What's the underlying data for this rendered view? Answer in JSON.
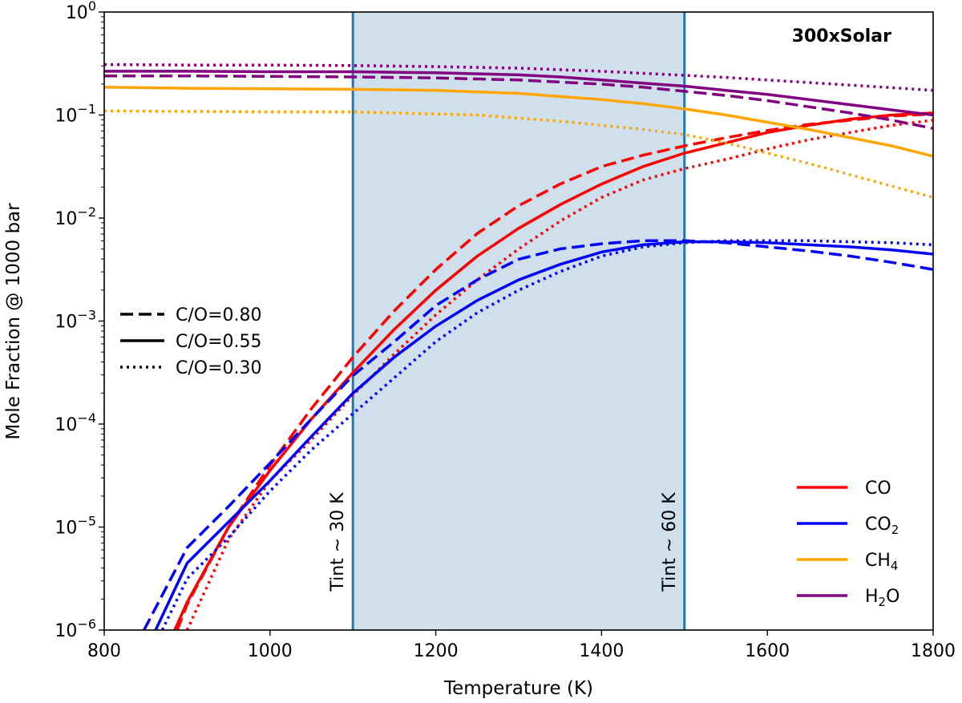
{
  "chart_data": {
    "type": "line",
    "title": "300xSolar",
    "xlabel": "Temperature (K)",
    "ylabel": "Mole Fraction @ 1000 bar",
    "xlim": [
      800,
      1800
    ],
    "ylim_log10": [
      -6,
      0
    ],
    "y_scale": "log",
    "x_ticks": [
      "800",
      "1000",
      "1200",
      "1400",
      "1600",
      "1800"
    ],
    "y_ticks": [
      {
        "base": "10",
        "exp": "−6"
      },
      {
        "base": "10",
        "exp": "−5"
      },
      {
        "base": "10",
        "exp": "−4"
      },
      {
        "base": "10",
        "exp": "−3"
      },
      {
        "base": "10",
        "exp": "−2"
      },
      {
        "base": "10",
        "exp": "−1"
      },
      {
        "base": "10",
        "exp": "0"
      }
    ],
    "shaded_region": {
      "x": [
        1100,
        1500
      ],
      "color": "#cfdfeb"
    },
    "vertical_lines": [
      {
        "x": 1100,
        "label": "Tint ~ 30 K",
        "color": "#1f77b4"
      },
      {
        "x": 1500,
        "label": "Tint ~ 60 K",
        "color": "#1f77b4"
      }
    ],
    "species_legend": {
      "position": "lower right",
      "entries": [
        {
          "key": "CO",
          "main": "CO",
          "sub": "",
          "tail": "",
          "color": "#ff0000"
        },
        {
          "key": "CO2",
          "main": "CO",
          "sub": "2",
          "tail": "",
          "color": "#0000ff"
        },
        {
          "key": "CH4",
          "main": "CH",
          "sub": "4",
          "tail": "",
          "color": "#ffa500"
        },
        {
          "key": "H2O",
          "main": "H",
          "sub": "2",
          "tail": "O",
          "color": "#800080"
        }
      ]
    },
    "style_legend": {
      "position": "center left",
      "entries": [
        {
          "label": "C/O=0.80",
          "style": "dashed"
        },
        {
          "label": "C/O=0.55",
          "style": "solid"
        },
        {
          "label": "C/O=0.30",
          "style": "dotted"
        }
      ]
    },
    "series": [
      {
        "species": "CO",
        "co_ratio": "0.80",
        "style": "dashed",
        "color": "#ff0000",
        "x": [
          888,
          900,
          950,
          1000,
          1050,
          1100,
          1150,
          1200,
          1250,
          1300,
          1350,
          1400,
          1450,
          1500,
          1550,
          1600,
          1650,
          1700,
          1750,
          1800
        ],
        "log10y": [
          -6.0,
          -5.75,
          -5.0,
          -4.4,
          -3.85,
          -3.35,
          -2.9,
          -2.5,
          -2.15,
          -1.88,
          -1.67,
          -1.5,
          -1.39,
          -1.3,
          -1.22,
          -1.15,
          -1.09,
          -1.05,
          -1.01,
          -0.99
        ]
      },
      {
        "species": "CO",
        "co_ratio": "0.55",
        "style": "solid",
        "color": "#ff0000",
        "x": [
          885,
          900,
          950,
          1000,
          1050,
          1100,
          1150,
          1200,
          1250,
          1300,
          1350,
          1400,
          1450,
          1500,
          1550,
          1600,
          1650,
          1700,
          1750,
          1800
        ],
        "log10y": [
          -6.0,
          -5.73,
          -5.0,
          -4.45,
          -3.95,
          -3.5,
          -3.08,
          -2.7,
          -2.37,
          -2.1,
          -1.87,
          -1.67,
          -1.5,
          -1.37,
          -1.27,
          -1.17,
          -1.1,
          -1.04,
          -1.0,
          -0.98
        ]
      },
      {
        "species": "CO",
        "co_ratio": "0.30",
        "style": "dotted",
        "color": "#ff0000",
        "x": [
          900,
          950,
          1000,
          1050,
          1100,
          1150,
          1200,
          1250,
          1300,
          1350,
          1400,
          1450,
          1500,
          1550,
          1600,
          1650,
          1700,
          1750,
          1800
        ],
        "log10y": [
          -6.0,
          -5.12,
          -4.55,
          -4.15,
          -3.72,
          -3.32,
          -2.94,
          -2.6,
          -2.3,
          -2.03,
          -1.8,
          -1.63,
          -1.52,
          -1.43,
          -1.33,
          -1.24,
          -1.17,
          -1.1,
          -1.05
        ]
      },
      {
        "species": "CO2",
        "co_ratio": "0.80",
        "style": "dashed",
        "color": "#0000ff",
        "x": [
          848,
          900,
          950,
          1000,
          1050,
          1100,
          1150,
          1200,
          1250,
          1300,
          1350,
          1400,
          1450,
          1500,
          1550,
          1600,
          1650,
          1700,
          1750,
          1800
        ],
        "log10y": [
          -6.0,
          -5.2,
          -4.8,
          -4.38,
          -3.95,
          -3.53,
          -3.2,
          -2.85,
          -2.6,
          -2.4,
          -2.3,
          -2.25,
          -2.22,
          -2.22,
          -2.24,
          -2.28,
          -2.32,
          -2.37,
          -2.43,
          -2.5
        ]
      },
      {
        "species": "CO2",
        "co_ratio": "0.55",
        "style": "solid",
        "color": "#0000ff",
        "x": [
          862,
          900,
          950,
          1000,
          1050,
          1100,
          1150,
          1200,
          1250,
          1300,
          1350,
          1400,
          1450,
          1500,
          1550,
          1600,
          1650,
          1700,
          1750,
          1800
        ],
        "log10y": [
          -6.0,
          -5.35,
          -4.95,
          -4.55,
          -4.12,
          -3.7,
          -3.35,
          -3.05,
          -2.8,
          -2.6,
          -2.45,
          -2.33,
          -2.26,
          -2.23,
          -2.23,
          -2.24,
          -2.26,
          -2.28,
          -2.31,
          -2.35
        ]
      },
      {
        "species": "CO2",
        "co_ratio": "0.30",
        "style": "dotted",
        "color": "#0000ff",
        "x": [
          870,
          900,
          950,
          1000,
          1050,
          1100,
          1150,
          1200,
          1250,
          1300,
          1350,
          1400,
          1450,
          1500,
          1550,
          1600,
          1650,
          1700,
          1750,
          1800
        ],
        "log10y": [
          -6.0,
          -5.5,
          -5.1,
          -4.65,
          -4.25,
          -3.9,
          -3.55,
          -3.2,
          -2.92,
          -2.7,
          -2.52,
          -2.37,
          -2.28,
          -2.24,
          -2.22,
          -2.22,
          -2.22,
          -2.23,
          -2.24,
          -2.26
        ]
      },
      {
        "species": "CH4",
        "co_ratio": "0.55",
        "style": "solid",
        "color": "#ffa500",
        "x": [
          800,
          900,
          1000,
          1100,
          1200,
          1300,
          1350,
          1400,
          1450,
          1500,
          1550,
          1600,
          1650,
          1700,
          1750,
          1800
        ],
        "log10y": [
          -0.73,
          -0.74,
          -0.745,
          -0.75,
          -0.76,
          -0.79,
          -0.82,
          -0.85,
          -0.89,
          -0.94,
          -1.0,
          -1.07,
          -1.14,
          -1.22,
          -1.3,
          -1.4
        ]
      },
      {
        "species": "CH4",
        "co_ratio": "0.30",
        "style": "dotted",
        "color": "#ffa500",
        "x": [
          800,
          900,
          1000,
          1100,
          1200,
          1250,
          1300,
          1350,
          1400,
          1450,
          1500,
          1550,
          1600,
          1650,
          1700,
          1750,
          1800
        ],
        "log10y": [
          -0.96,
          -0.965,
          -0.97,
          -0.97,
          -0.99,
          -1.0,
          -1.03,
          -1.06,
          -1.1,
          -1.14,
          -1.19,
          -1.27,
          -1.37,
          -1.47,
          -1.58,
          -1.69,
          -1.8
        ]
      },
      {
        "species": "H2O",
        "co_ratio": "0.80",
        "style": "dashed",
        "color": "#800080",
        "x": [
          800,
          900,
          1000,
          1100,
          1200,
          1300,
          1350,
          1400,
          1450,
          1500,
          1550,
          1600,
          1650,
          1700,
          1750,
          1800
        ],
        "log10y": [
          -0.62,
          -0.62,
          -0.625,
          -0.63,
          -0.64,
          -0.66,
          -0.68,
          -0.7,
          -0.73,
          -0.77,
          -0.81,
          -0.86,
          -0.92,
          -0.98,
          -1.05,
          -1.13
        ]
      },
      {
        "species": "H2O",
        "co_ratio": "0.55",
        "style": "solid",
        "color": "#800080",
        "x": [
          800,
          900,
          1000,
          1100,
          1200,
          1300,
          1350,
          1400,
          1450,
          1500,
          1550,
          1600,
          1650,
          1700,
          1750,
          1800
        ],
        "log10y": [
          -0.575,
          -0.575,
          -0.58,
          -0.58,
          -0.59,
          -0.61,
          -0.63,
          -0.66,
          -0.69,
          -0.72,
          -0.76,
          -0.8,
          -0.85,
          -0.9,
          -0.95,
          -1.0
        ]
      },
      {
        "species": "H2O",
        "co_ratio": "0.30",
        "style": "dotted",
        "color": "#800080",
        "x": [
          800,
          900,
          1000,
          1100,
          1200,
          1300,
          1400,
          1450,
          1500,
          1550,
          1600,
          1650,
          1700,
          1750,
          1800
        ],
        "log10y": [
          -0.51,
          -0.515,
          -0.515,
          -0.52,
          -0.53,
          -0.545,
          -0.575,
          -0.595,
          -0.615,
          -0.635,
          -0.66,
          -0.685,
          -0.71,
          -0.735,
          -0.76
        ]
      }
    ]
  }
}
